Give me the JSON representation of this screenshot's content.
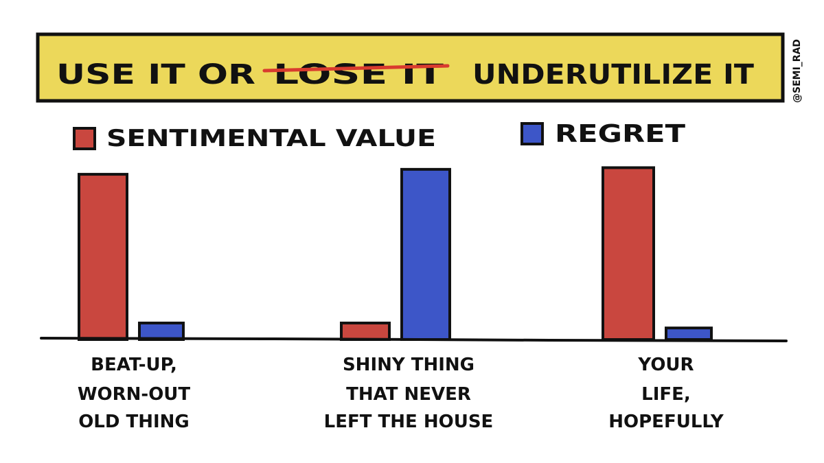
{
  "chart_data": {
    "type": "bar",
    "title": {
      "prefix": "USE IT OR",
      "struck": "LOSE IT",
      "suffix": "UNDERUTILIZE IT"
    },
    "credit": "@SEMI_RAD",
    "categories": [
      [
        "BEAT-UP,",
        "WORN-OUT",
        "OLD THING"
      ],
      [
        "SHINY THING",
        "THAT NEVER",
        "LEFT THE HOUSE"
      ],
      [
        "YOUR",
        "LIFE,",
        "HOPEFULLY"
      ]
    ],
    "series": [
      {
        "name": "SENTIMENTAL VALUE",
        "color": "#c9473f",
        "values": [
          10,
          1,
          10.4
        ]
      },
      {
        "name": "REGRET",
        "color": "#3d56c8",
        "values": [
          1,
          10.3,
          0.7
        ]
      }
    ],
    "ylim": [
      0,
      11
    ],
    "grid": false,
    "legend": "top-left",
    "colors": {
      "banner": "#ecd85a",
      "strike": "#d93b2e",
      "ink": "#111111"
    }
  }
}
